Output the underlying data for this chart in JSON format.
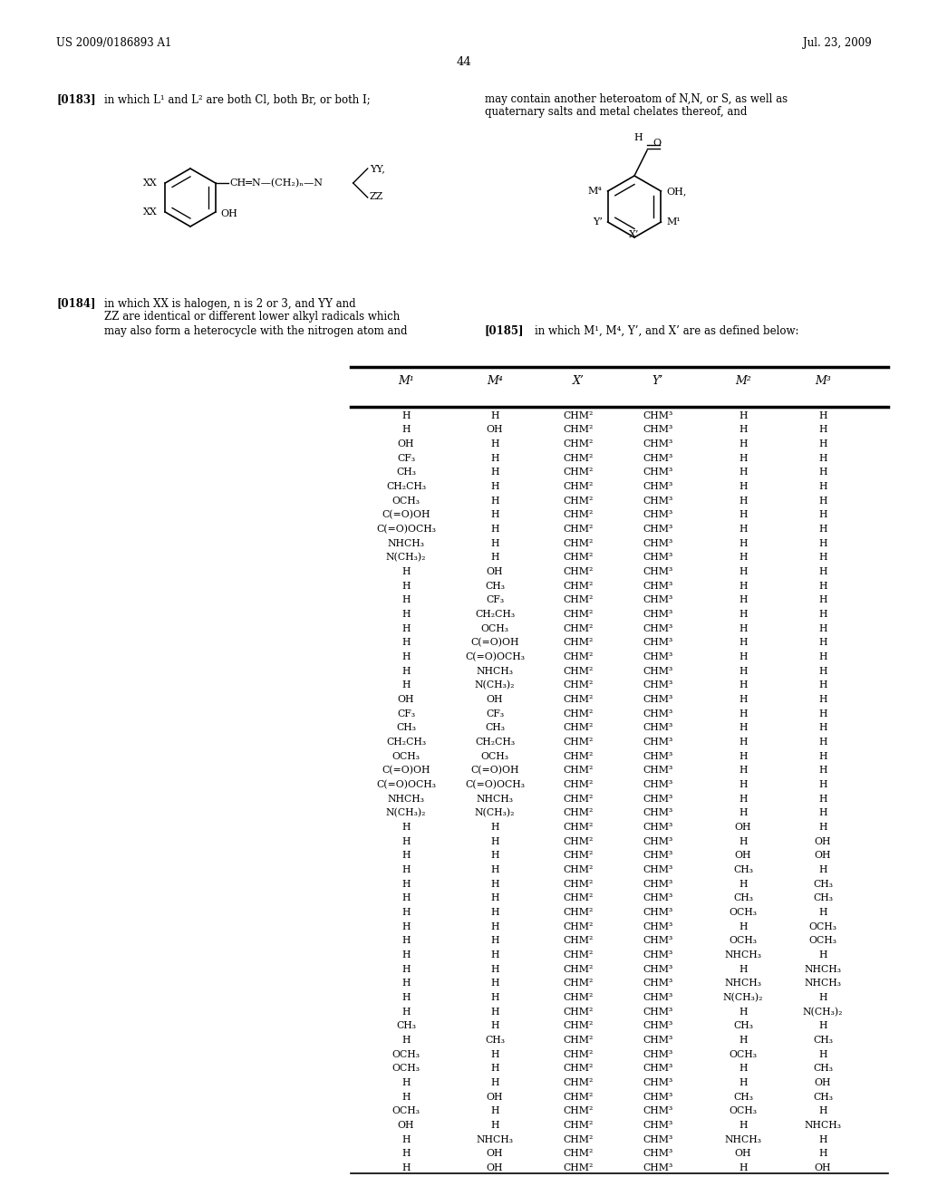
{
  "header_left": "US 2009/0186893 A1",
  "header_right": "Jul. 23, 2009",
  "page_number": "44",
  "para183_label": "[0183]",
  "para183_text": "in which L¹ and L² are both Cl, both Br, or both I;",
  "para183_right1": "may contain another heteroatom of N,N, or S, as well as",
  "para183_right2": "quaternary salts and metal chelates thereof, and",
  "para184_label": "[0184]",
  "para184_line1": "in which XX is halogen, n is 2 or 3, and YY and",
  "para184_line2": "ZZ are identical or different lower alkyl radicals which",
  "para184_line3": "may also form a heterocycle with the nitrogen atom and",
  "para185_label": "[0185]",
  "para185_text": "in which M¹, M⁴, Y’, and X’ are as defined below:",
  "table_headers": [
    "M¹",
    "M⁴",
    "X’",
    "Y’",
    "M²",
    "M³"
  ],
  "table_rows": [
    [
      "H",
      "H",
      "CHM²",
      "CHM³",
      "H",
      "H"
    ],
    [
      "H",
      "OH",
      "CHM²",
      "CHM³",
      "H",
      "H"
    ],
    [
      "OH",
      "H",
      "CHM²",
      "CHM³",
      "H",
      "H"
    ],
    [
      "CF₃",
      "H",
      "CHM²",
      "CHM³",
      "H",
      "H"
    ],
    [
      "CH₃",
      "H",
      "CHM²",
      "CHM³",
      "H",
      "H"
    ],
    [
      "CH₂CH₃",
      "H",
      "CHM²",
      "CHM³",
      "H",
      "H"
    ],
    [
      "OCH₃",
      "H",
      "CHM²",
      "CHM³",
      "H",
      "H"
    ],
    [
      "C(=O)OH",
      "H",
      "CHM²",
      "CHM³",
      "H",
      "H"
    ],
    [
      "C(=O)OCH₃",
      "H",
      "CHM²",
      "CHM³",
      "H",
      "H"
    ],
    [
      "NHCH₃",
      "H",
      "CHM²",
      "CHM³",
      "H",
      "H"
    ],
    [
      "N(CH₃)₂",
      "H",
      "CHM²",
      "CHM³",
      "H",
      "H"
    ],
    [
      "H",
      "OH",
      "CHM²",
      "CHM³",
      "H",
      "H"
    ],
    [
      "H",
      "CH₃",
      "CHM²",
      "CHM³",
      "H",
      "H"
    ],
    [
      "H",
      "CF₃",
      "CHM²",
      "CHM³",
      "H",
      "H"
    ],
    [
      "H",
      "CH₂CH₃",
      "CHM²",
      "CHM³",
      "H",
      "H"
    ],
    [
      "H",
      "OCH₃",
      "CHM²",
      "CHM³",
      "H",
      "H"
    ],
    [
      "H",
      "C(=O)OH",
      "CHM²",
      "CHM³",
      "H",
      "H"
    ],
    [
      "H",
      "C(=O)OCH₃",
      "CHM²",
      "CHM³",
      "H",
      "H"
    ],
    [
      "H",
      "NHCH₃",
      "CHM²",
      "CHM³",
      "H",
      "H"
    ],
    [
      "H",
      "N(CH₃)₂",
      "CHM²",
      "CHM³",
      "H",
      "H"
    ],
    [
      "OH",
      "OH",
      "CHM²",
      "CHM³",
      "H",
      "H"
    ],
    [
      "CF₃",
      "CF₃",
      "CHM²",
      "CHM³",
      "H",
      "H"
    ],
    [
      "CH₃",
      "CH₃",
      "CHM²",
      "CHM³",
      "H",
      "H"
    ],
    [
      "CH₂CH₃",
      "CH₂CH₃",
      "CHM²",
      "CHM³",
      "H",
      "H"
    ],
    [
      "OCH₃",
      "OCH₃",
      "CHM²",
      "CHM³",
      "H",
      "H"
    ],
    [
      "C(=O)OH",
      "C(=O)OH",
      "CHM²",
      "CHM³",
      "H",
      "H"
    ],
    [
      "C(=O)OCH₃",
      "C(=O)OCH₃",
      "CHM²",
      "CHM³",
      "H",
      "H"
    ],
    [
      "NHCH₃",
      "NHCH₃",
      "CHM²",
      "CHM³",
      "H",
      "H"
    ],
    [
      "N(CH₃)₂",
      "N(CH₃)₂",
      "CHM²",
      "CHM³",
      "H",
      "H"
    ],
    [
      "H",
      "H",
      "CHM²",
      "CHM³",
      "OH",
      "H"
    ],
    [
      "H",
      "H",
      "CHM²",
      "CHM³",
      "H",
      "OH"
    ],
    [
      "H",
      "H",
      "CHM²",
      "CHM³",
      "OH",
      "OH"
    ],
    [
      "H",
      "H",
      "CHM²",
      "CHM³",
      "CH₃",
      "H"
    ],
    [
      "H",
      "H",
      "CHM²",
      "CHM³",
      "H",
      "CH₃"
    ],
    [
      "H",
      "H",
      "CHM²",
      "CHM³",
      "CH₃",
      "CH₃"
    ],
    [
      "H",
      "H",
      "CHM²",
      "CHM³",
      "OCH₃",
      "H"
    ],
    [
      "H",
      "H",
      "CHM²",
      "CHM³",
      "H",
      "OCH₃"
    ],
    [
      "H",
      "H",
      "CHM²",
      "CHM³",
      "OCH₃",
      "OCH₃"
    ],
    [
      "H",
      "H",
      "CHM²",
      "CHM³",
      "NHCH₃",
      "H"
    ],
    [
      "H",
      "H",
      "CHM²",
      "CHM³",
      "H",
      "NHCH₃"
    ],
    [
      "H",
      "H",
      "CHM²",
      "CHM³",
      "NHCH₃",
      "NHCH₃"
    ],
    [
      "H",
      "H",
      "CHM²",
      "CHM³",
      "N(CH₃)₂",
      "H"
    ],
    [
      "H",
      "H",
      "CHM²",
      "CHM³",
      "H",
      "N(CH₃)₂"
    ],
    [
      "CH₃",
      "H",
      "CHM²",
      "CHM³",
      "CH₃",
      "H"
    ],
    [
      "H",
      "CH₃",
      "CHM²",
      "CHM³",
      "H",
      "CH₃"
    ],
    [
      "OCH₃",
      "H",
      "CHM²",
      "CHM³",
      "OCH₃",
      "H"
    ],
    [
      "OCH₃",
      "H",
      "CHM²",
      "CHM³",
      "H",
      "CH₃"
    ],
    [
      "H",
      "H",
      "CHM²",
      "CHM³",
      "H",
      "OH"
    ],
    [
      "H",
      "OH",
      "CHM²",
      "CHM³",
      "CH₃",
      "CH₃"
    ],
    [
      "OCH₃",
      "H",
      "CHM²",
      "CHM³",
      "OCH₃",
      "H"
    ],
    [
      "OH",
      "H",
      "CHM²",
      "CHM³",
      "H",
      "NHCH₃"
    ],
    [
      "H",
      "NHCH₃",
      "CHM²",
      "CHM³",
      "NHCH₃",
      "H"
    ],
    [
      "H",
      "OH",
      "CHM²",
      "CHM³",
      "OH",
      "H"
    ],
    [
      "H",
      "OH",
      "CHM²",
      "CHM³",
      "H",
      "OH"
    ]
  ]
}
